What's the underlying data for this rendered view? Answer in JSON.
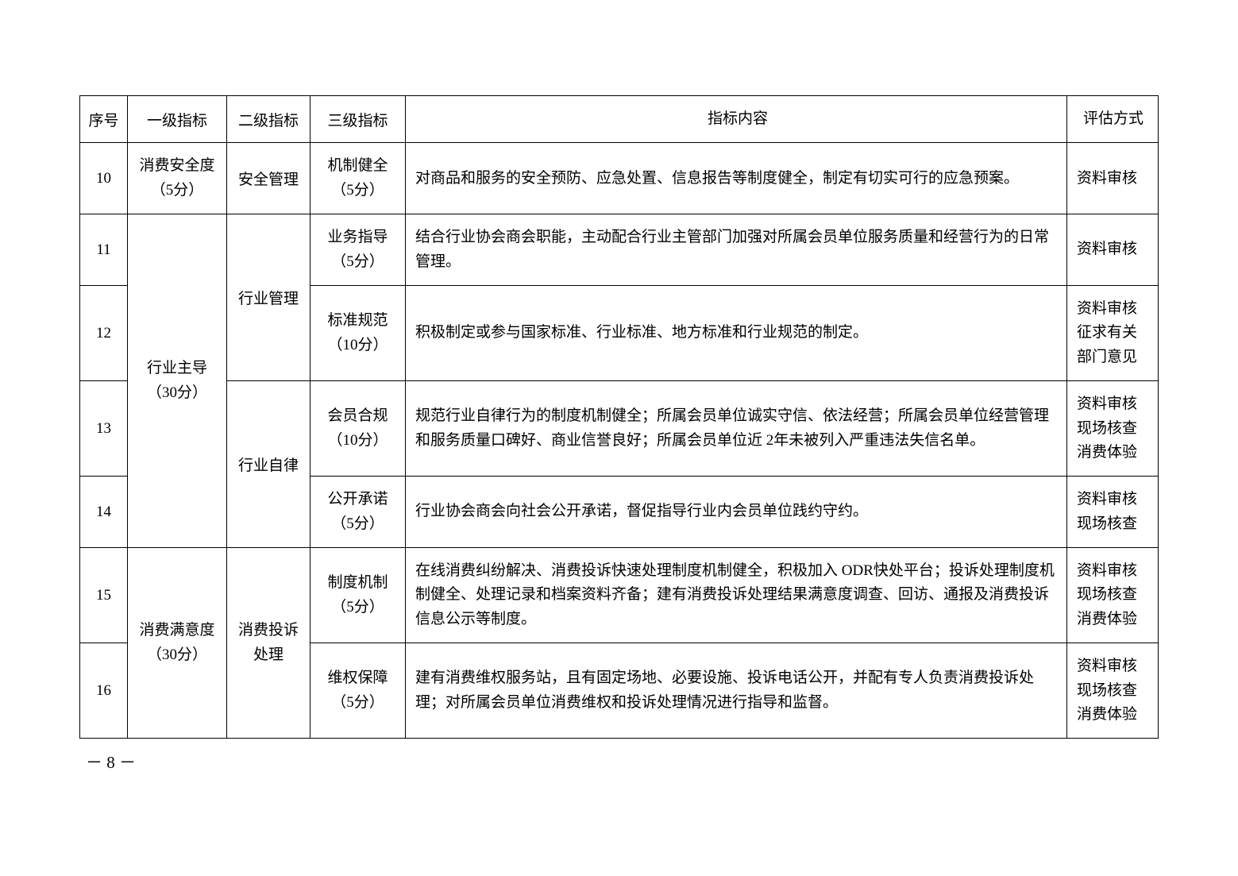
{
  "header": {
    "seq": "序号",
    "level1": "一级指标",
    "level2": "二级指标",
    "level3": "三级指标",
    "content": "指标内容",
    "method": "评估方式"
  },
  "rows": {
    "r10": {
      "seq": "10",
      "l1": "消费安全度\n（5分）",
      "l2": "安全管理",
      "l3": "机制健全\n（5分）",
      "content": "对商品和服务的安全预防、应急处置、信息报告等制度健全，制定有切实可行的应急预案。",
      "method": "资料审核"
    },
    "r11": {
      "seq": "11",
      "l1_merged": "行业主导\n（30分）",
      "l2_a": "行业管理",
      "l3": "业务指导\n（5分）",
      "content": "结合行业协会商会职能，主动配合行业主管部门加强对所属会员单位服务质量和经营行为的日常管理。",
      "method": "资料审核"
    },
    "r12": {
      "seq": "12",
      "l3": "标准规范\n（10分）",
      "content": "积极制定或参与国家标准、行业标准、地方标准和行业规范的制定。",
      "method": "资料审核\n征求有关\n部门意见"
    },
    "r13": {
      "seq": "13",
      "l2_b": "行业自律",
      "l3": "会员合规\n（10分）",
      "content": "规范行业自律行为的制度机制健全；所属会员单位诚实守信、依法经营；所属会员单位经营管理和服务质量口碑好、商业信誉良好；所属会员单位近 2年未被列入严重违法失信名单。",
      "method": "资料审核\n现场核查\n消费体验"
    },
    "r14": {
      "seq": "14",
      "l3": "公开承诺\n（5分）",
      "content": "行业协会商会向社会公开承诺，督促指导行业内会员单位践约守约。",
      "method": "资料审核\n现场核查"
    },
    "r15": {
      "seq": "15",
      "l1_merged": "消费满意度\n（30分）",
      "l2": "消费投诉\n处理",
      "l3": "制度机制\n（5分）",
      "content": "在线消费纠纷解决、消费投诉快速处理制度机制健全，积极加入 ODR快处平台；投诉处理制度机制健全、处理记录和档案资料齐备；建有消费投诉处理结果满意度调查、回访、通报及消费投诉信息公示等制度。",
      "method": "资料审核\n现场核查\n消费体验"
    },
    "r16": {
      "seq": "16",
      "l3": "维权保障\n（5分）",
      "content": "建有消费维权服务站，且有固定场地、必要设施、投诉电话公开，并配有专人负责消费投诉处理；对所属会员单位消费维权和投诉处理情况进行指导和监督。",
      "method": "资料审核\n现场核查\n消费体验"
    }
  },
  "page_number": "－ 8 －"
}
